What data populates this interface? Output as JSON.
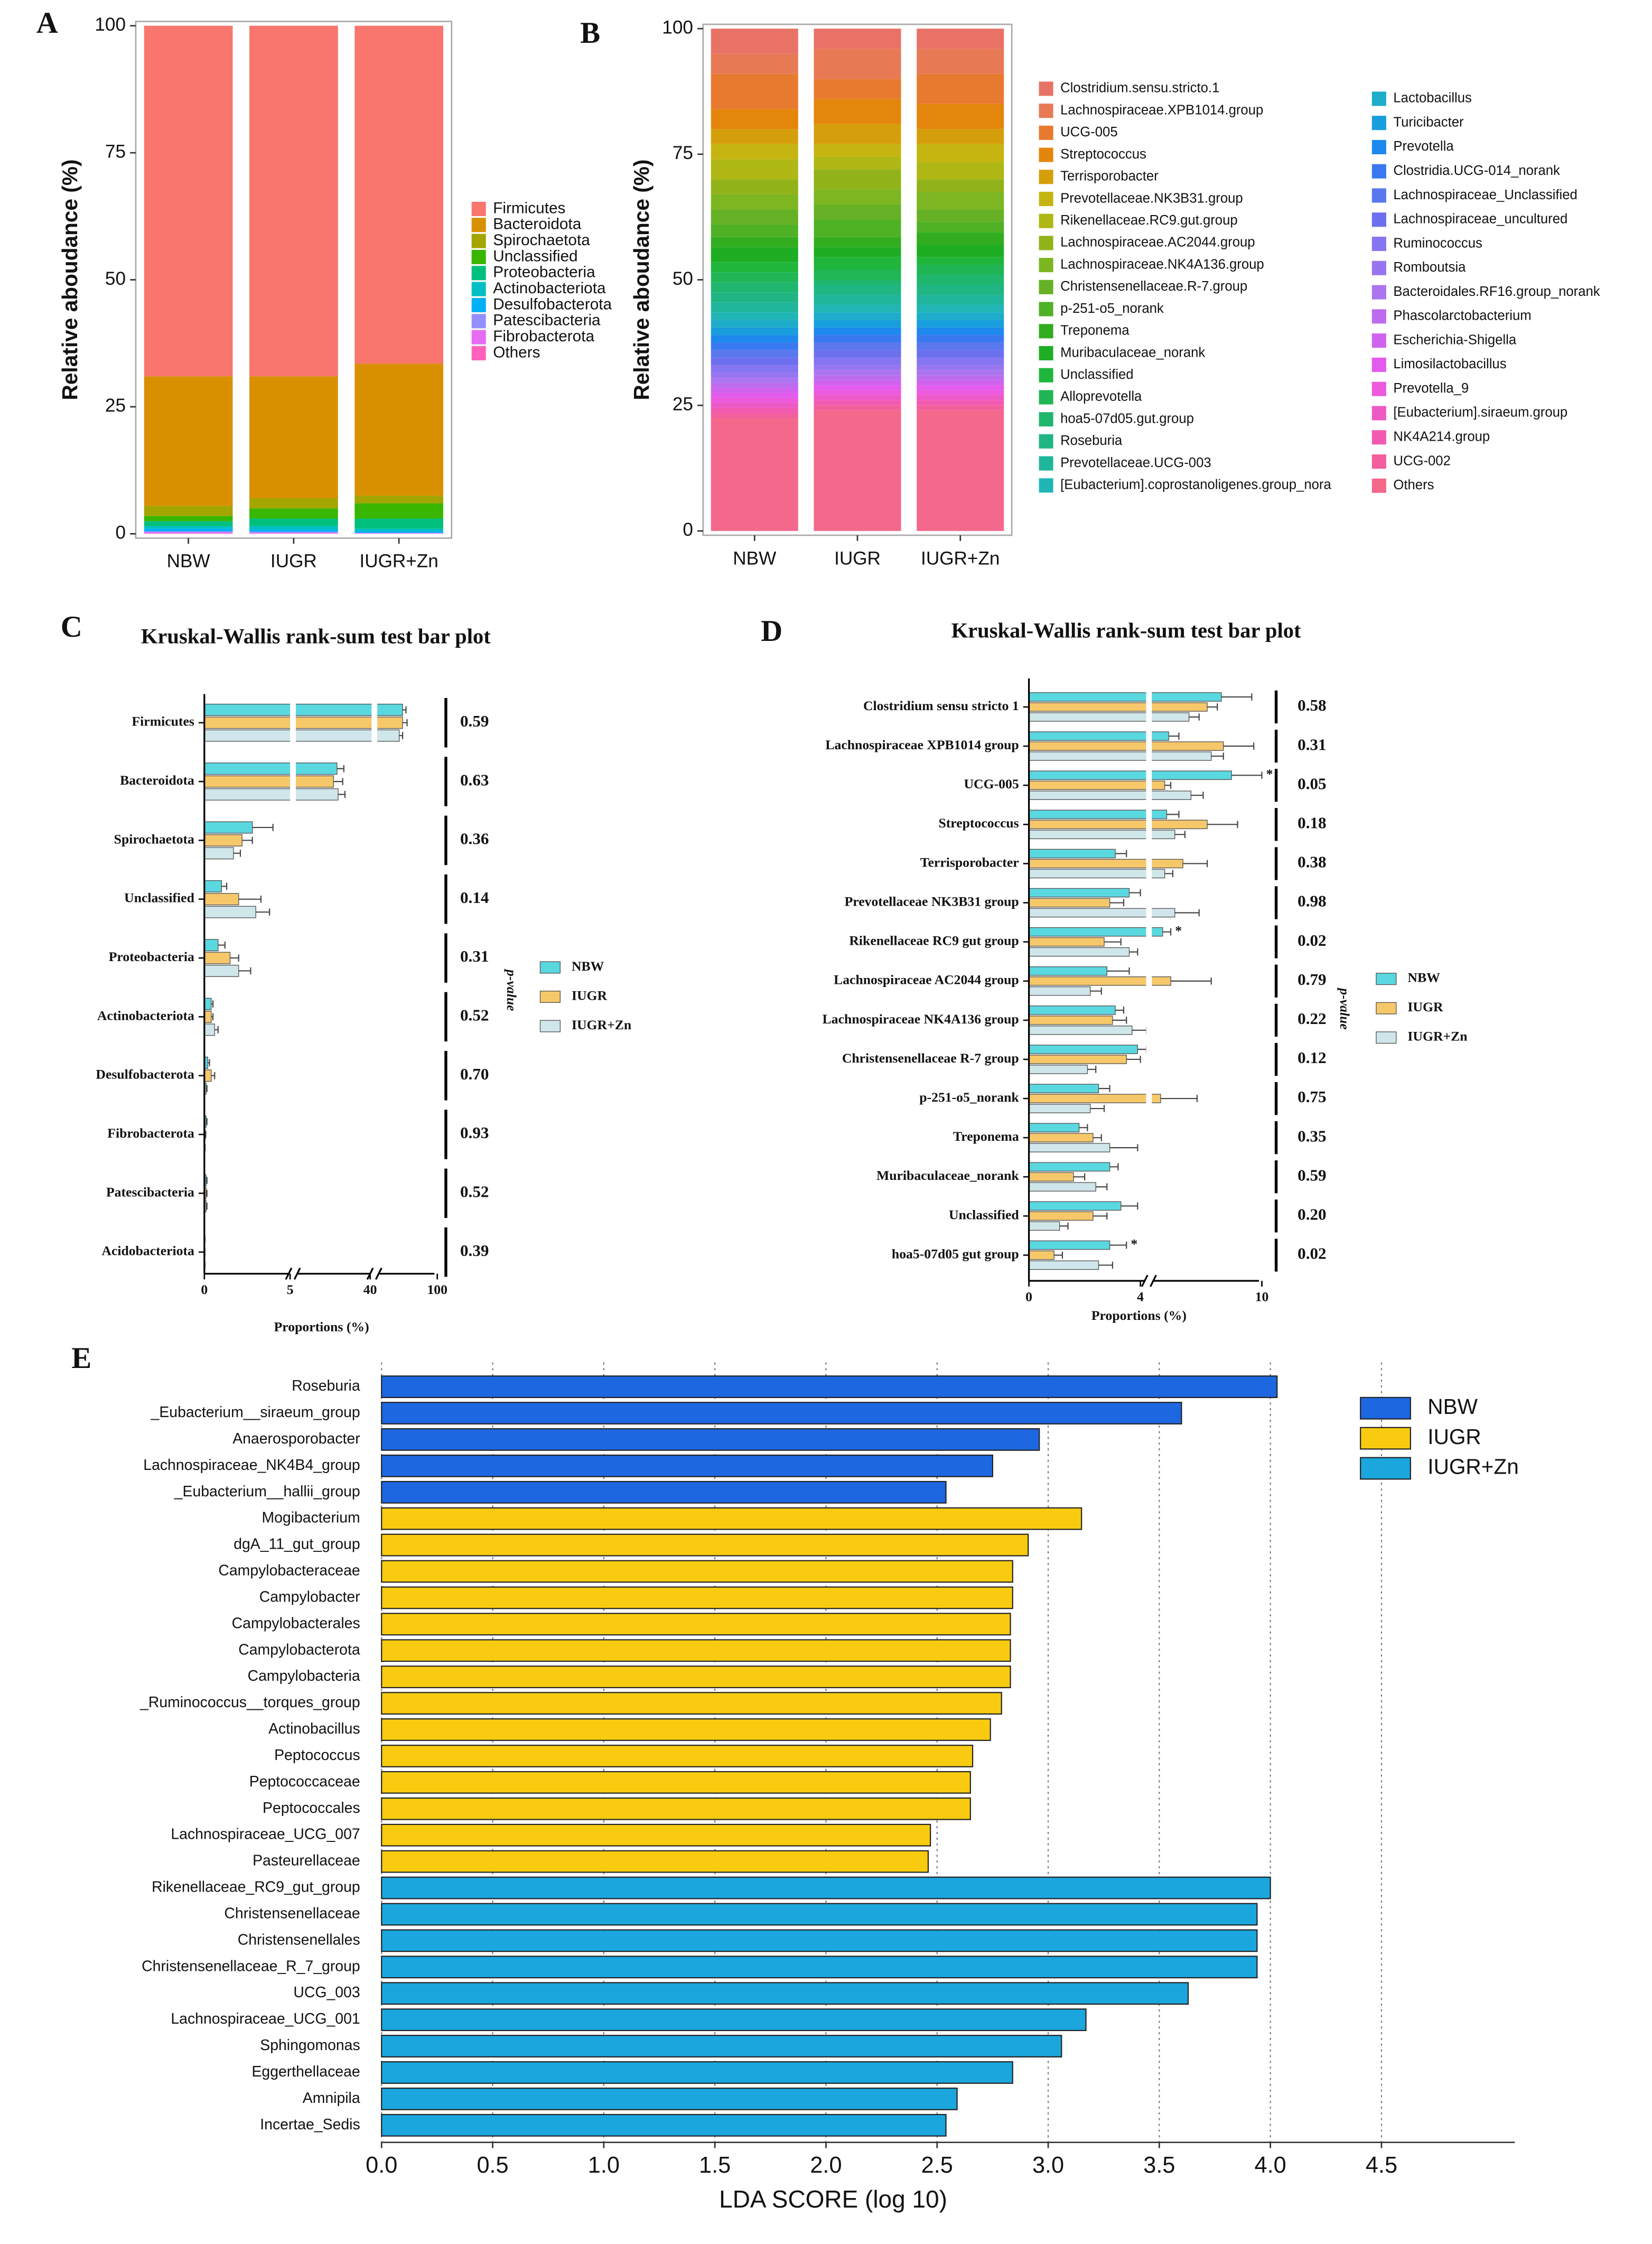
{
  "chart_data": [
    {
      "type": "stackedbar",
      "panel_label": "A",
      "ylabel": "Relative aboudance (%)",
      "categories": [
        "NBW",
        "IUGR",
        "IUGR+Zn"
      ],
      "ylim": [
        0,
        100
      ],
      "yticks": [
        0,
        25,
        50,
        75,
        100
      ],
      "series": [
        {
          "name": "Firmicutes",
          "color": "#f8766d",
          "values": [
            69,
            69,
            66.5
          ]
        },
        {
          "name": "Bacteroidota",
          "color": "#d89000",
          "values": [
            25.5,
            24,
            26
          ]
        },
        {
          "name": "Spirochaetota",
          "color": "#a3a500",
          "values": [
            2,
            2,
            1.5
          ]
        },
        {
          "name": "Unclassified",
          "color": "#39b600",
          "values": [
            1,
            2,
            3
          ]
        },
        {
          "name": "Proteobacteria",
          "color": "#00bf7d",
          "values": [
            1,
            1.5,
            2
          ]
        },
        {
          "name": "Actinobacteriota",
          "color": "#00bfc4",
          "values": [
            0.5,
            0.7,
            0.5
          ]
        },
        {
          "name": "Desulfobacterota",
          "color": "#00b0f6",
          "values": [
            0.5,
            0.4,
            0.3
          ]
        },
        {
          "name": "Patescibacteria",
          "color": "#9590ff",
          "values": [
            0.2,
            0.2,
            0.1
          ]
        },
        {
          "name": "Fibrobacterota",
          "color": "#e76bf3",
          "values": [
            0.2,
            0.1,
            0.05
          ]
        },
        {
          "name": "Others",
          "color": "#ff62bc",
          "values": [
            0.1,
            0.1,
            0.05
          ]
        }
      ]
    },
    {
      "type": "stackedbar",
      "panel_label": "B",
      "ylabel": "Relative aboudance (%)",
      "categories": [
        "NBW",
        "IUGR",
        "IUGR+Zn"
      ],
      "ylim": [
        0,
        100
      ],
      "yticks": [
        0,
        25,
        50,
        75,
        100
      ],
      "series": [
        {
          "name": "Clostridium.sensu.stricto.1",
          "color": "hsl(5,75%,66%)",
          "values": [
            5,
            4,
            4
          ]
        },
        {
          "name": "Lachnospiraceae.XPB1014.group",
          "color": "hsl(15,75%,62%)",
          "values": [
            4,
            6,
            5
          ]
        },
        {
          "name": "UCG-005",
          "color": "hsl(24,80%,55%)",
          "values": [
            7,
            4,
            6
          ]
        },
        {
          "name": "Streptococcus",
          "color": "hsl(34,90%,47%)",
          "values": [
            4,
            5,
            5
          ]
        },
        {
          "name": "Terrisporobacter",
          "color": "hsl(44,90%,44%)",
          "values": [
            3,
            4,
            3
          ]
        },
        {
          "name": "Prevotellaceae.NK3B31.group",
          "color": "hsl(54,85%,42%)",
          "values": [
            3,
            2.5,
            3.5
          ]
        },
        {
          "name": "Rikenellaceae.RC9.gut.group",
          "color": "hsl(63,80%,40%)",
          "values": [
            4,
            2.5,
            3.5
          ]
        },
        {
          "name": "Lachnospiraceae.AC2044.group",
          "color": "hsl(73,75%,40%)",
          "values": [
            3,
            4,
            2.5
          ]
        },
        {
          "name": "Lachnospiraceae.NK4A136.group",
          "color": "hsl(83,70%,42%)",
          "values": [
            3,
            3,
            3.5
          ]
        },
        {
          "name": "Christensenellaceae.R-7.group",
          "color": "hsl(92,65%,42%)",
          "values": [
            3,
            3,
            2.5
          ]
        },
        {
          "name": "p-251-o5_norank",
          "color": "hsl(102,65%,42%)",
          "values": [
            2.5,
            3.5,
            2
          ]
        },
        {
          "name": "Treponema",
          "color": "hsl(112,70%,40%)",
          "values": [
            2,
            2,
            2.5
          ]
        },
        {
          "name": "Muribaculaceae_norank",
          "color": "hsl(122,70%,40%)",
          "values": [
            3,
            2,
            2.5
          ]
        },
        {
          "name": "Unclassified",
          "color": "hsl(131,70%,42%)",
          "values": [
            2,
            2.5,
            1.5
          ]
        },
        {
          "name": "Alloprevotella",
          "color": "hsl(141,70%,42%)",
          "values": [
            2,
            2,
            2
          ]
        },
        {
          "name": "hoa5-07d05.gut.group",
          "color": "hsl(151,70%,42%)",
          "values": [
            2,
            1,
            2
          ]
        },
        {
          "name": "Roseburia",
          "color": "hsl(160,70%,42%)",
          "values": [
            2,
            2,
            2
          ]
        },
        {
          "name": "Prevotellaceae.UCG-003",
          "color": "hsl(170,70%,42%)",
          "values": [
            2,
            2,
            2
          ]
        },
        {
          "name": "[Eubacterium].coprostanoligenes.group_nora",
          "color": "hsl(180,70%,42%)",
          "values": [
            1.5,
            1.5,
            1.5
          ]
        },
        {
          "name": "Lactobacillus",
          "color": "hsl(190,75%,45%)",
          "values": [
            1.5,
            1.5,
            1.5
          ]
        },
        {
          "name": "Turicibacter",
          "color": "hsl(199,80%,48%)",
          "values": [
            1.5,
            1.5,
            1.5
          ]
        },
        {
          "name": "Prevotella",
          "color": "hsl(209,85%,52%)",
          "values": [
            1.5,
            1.5,
            1.5
          ]
        },
        {
          "name": "Clostridia.UCG-014_norank",
          "color": "hsl(219,85%,58%)",
          "values": [
            1.5,
            1.5,
            1.5
          ]
        },
        {
          "name": "Lachnospiraceae_Unclassified",
          "color": "hsl(228,80%,64%)",
          "values": [
            1.5,
            1.5,
            1.5
          ]
        },
        {
          "name": "Lachnospiraceae_uncultured",
          "color": "hsl(238,80%,68%)",
          "values": [
            1.5,
            1.5,
            1.5
          ]
        },
        {
          "name": "Ruminococcus",
          "color": "hsl(248,80%,70%)",
          "values": [
            1.5,
            1.5,
            1.5
          ]
        },
        {
          "name": "Romboutsia",
          "color": "hsl(257,80%,70%)",
          "values": [
            1,
            1,
            1
          ]
        },
        {
          "name": "Bacteroidales.RF16.group_norank",
          "color": "hsl(267,80%,70%)",
          "values": [
            1,
            1,
            1
          ]
        },
        {
          "name": "Phascolarctobacterium",
          "color": "hsl(277,80%,68%)",
          "values": [
            1,
            1,
            1
          ]
        },
        {
          "name": "Escherichia-Shigella",
          "color": "hsl(287,80%,66%)",
          "values": [
            1,
            1,
            1
          ]
        },
        {
          "name": "Limosilactobacillus",
          "color": "hsl(296,80%,64%)",
          "values": [
            1,
            1,
            1
          ]
        },
        {
          "name": "Prevotella_9",
          "color": "hsl(306,80%,64%)",
          "values": [
            1,
            1,
            1
          ]
        },
        {
          "name": "[Eubacterium].siraeum.group",
          "color": "hsl(316,80%,64%)",
          "values": [
            1,
            1,
            1
          ]
        },
        {
          "name": "NK4A214.group",
          "color": "hsl(325,85%,65%)",
          "values": [
            1,
            1,
            1
          ]
        },
        {
          "name": "UCG-002",
          "color": "hsl(335,85%,66%)",
          "values": [
            1,
            1,
            1
          ]
        },
        {
          "name": "Others",
          "color": "hsl(345,85%,68%)",
          "values": [
            22.5,
            24,
            24
          ]
        }
      ]
    },
    {
      "type": "groupedbar",
      "panel_label": "C",
      "title": "Kruskal-Wallis rank-sum test bar plot",
      "categories": [
        "Firmicutes",
        "Bacteroidota",
        "Spirochaetota",
        "Unclassified",
        "Proteobacteria",
        "Actinobacteriota",
        "Desulfobacterota",
        "Fibrobacterota",
        "Patescibacteria",
        "Acidobacteriota"
      ],
      "series": [
        {
          "name": "NBW",
          "color": "#5ad8e0",
          "values": [
            69,
            25.5,
            2.8,
            1.0,
            0.8,
            0.4,
            0.2,
            0.1,
            0.1,
            0.02
          ],
          "errors": [
            3,
            3,
            1.2,
            0.3,
            0.4,
            0.1,
            0.1,
            0.05,
            0.05,
            0.01
          ]
        },
        {
          "name": "IUGR",
          "color": "#f7c86a",
          "values": [
            69,
            24,
            2.2,
            2.0,
            1.5,
            0.4,
            0.4,
            0.05,
            0.1,
            0.02
          ],
          "errors": [
            4,
            4,
            0.6,
            1.3,
            0.5,
            0.1,
            0.2,
            0.03,
            0.05,
            0.01
          ]
        },
        {
          "name": "IUGR+Zn",
          "color": "#cfe6ea",
          "values": [
            66,
            26,
            1.7,
            3.0,
            2.0,
            0.6,
            0.1,
            0.02,
            0.1,
            0.02
          ],
          "errors": [
            3,
            3,
            0.4,
            0.8,
            0.7,
            0.2,
            0.05,
            0.02,
            0.05,
            0.01
          ]
        }
      ],
      "xlim": [
        0,
        100
      ],
      "xticks": [
        0,
        5,
        40,
        100
      ],
      "xlabel": "Proportions (%)",
      "p_label": "p-value",
      "p_values": [
        0.59,
        0.63,
        0.36,
        0.14,
        0.31,
        0.52,
        0.7,
        0.93,
        0.52,
        0.39
      ],
      "p_value_labels": [
        "0.59",
        "0.63",
        "0.36",
        "0.14",
        "0.31",
        "0.52",
        "0.70",
        "0.93",
        "0.52",
        "0.39"
      ]
    },
    {
      "type": "groupedbar",
      "panel_label": "D",
      "title": "Kruskal-Wallis rank-sum test bar plot",
      "categories": [
        "Clostridium sensu stricto 1",
        "Lachnospiraceae XPB1014 group",
        "UCG-005",
        "Streptococcus",
        "Terrisporobacter",
        "Prevotellaceae NK3B31 group",
        "Rikenellaceae RC9 gut group",
        "Lachnospiraceae AC2044 group",
        "Lachnospiraceae NK4A136 group",
        "Christensenellaceae R-7 group",
        "p-251-o5_norank",
        "Treponema",
        "Muribaculaceae_norank",
        "Unclassified",
        "hoa5-07d05 gut group"
      ],
      "series": [
        {
          "name": "NBW",
          "color": "#5ad8e0",
          "values": [
            8.0,
            5.4,
            8.5,
            5.3,
            3.1,
            3.6,
            5.1,
            2.8,
            3.1,
            3.9,
            2.5,
            1.8,
            2.9,
            3.3,
            2.9
          ],
          "errors": [
            1.5,
            0.5,
            1.5,
            0.6,
            0.4,
            0.4,
            0.4,
            0.8,
            0.3,
            0.4,
            0.4,
            0.3,
            0.3,
            0.6,
            0.6
          ]
        },
        {
          "name": "IUGR",
          "color": "#f7c86a",
          "values": [
            7.3,
            8.1,
            5.2,
            7.3,
            6.1,
            2.9,
            2.7,
            5.5,
            3.0,
            3.5,
            5.0,
            2.3,
            1.6,
            2.3,
            0.9
          ],
          "errors": [
            0.5,
            1.5,
            0.3,
            1.5,
            1.2,
            0.5,
            0.6,
            2.0,
            0.5,
            0.5,
            1.8,
            0.3,
            0.4,
            0.5,
            0.3
          ]
        },
        {
          "name": "IUGR+Zn",
          "color": "#cfe6ea",
          "values": [
            6.4,
            7.5,
            6.5,
            5.7,
            5.2,
            5.7,
            3.6,
            2.2,
            3.7,
            2.1,
            2.2,
            2.9,
            2.4,
            1.1,
            2.5
          ],
          "errors": [
            0.5,
            0.6,
            0.6,
            0.5,
            0.4,
            1.2,
            0.3,
            0.4,
            0.6,
            0.3,
            0.5,
            1.0,
            0.4,
            0.3,
            0.5
          ]
        }
      ],
      "xlim": [
        0,
        10
      ],
      "xticks": [
        0,
        4,
        10
      ],
      "xlabel": "Proportions (%)",
      "p_label": "p-value",
      "p_values": [
        0.58,
        0.31,
        0.05,
        0.18,
        0.38,
        0.98,
        0.02,
        0.79,
        0.22,
        0.12,
        0.75,
        0.35,
        0.59,
        0.2,
        0.02
      ],
      "p_value_labels": [
        "0.58",
        "0.31",
        "0.05",
        "0.18",
        "0.38",
        "0.98",
        "0.02",
        "0.79",
        "0.22",
        "0.12",
        "0.75",
        "0.35",
        "0.59",
        "0.20",
        "0.02"
      ],
      "significance_mark": "*",
      "significant_color": "#e8221c"
    },
    {
      "type": "hbar",
      "panel_label": "E",
      "xlabel": "LDA SCORE (log 10)",
      "grid": true,
      "xlim": [
        0,
        5.1
      ],
      "xticks": [
        {
          "value": 0,
          "label": "0.0"
        },
        0.5,
        {
          "value": 1,
          "label": "1.0"
        },
        1.5,
        {
          "value": 2,
          "label": "2.0"
        },
        2.5,
        {
          "value": 3,
          "label": "3.0"
        },
        3.5,
        {
          "value": 4,
          "label": "4.0"
        },
        4.5
      ],
      "series": [
        {
          "name": "NBW",
          "color": "#1d68e0",
          "categories": [
            "Roseburia",
            "_Eubacterium__siraeum_group",
            "Anaerosporobacter",
            "Lachnospiraceae_NK4B4_group",
            "_Eubacterium__hallii_group"
          ],
          "values": [
            4.03,
            3.6,
            2.96,
            2.75,
            2.54
          ]
        },
        {
          "name": "IUGR",
          "color": "#f8cb10",
          "categories": [
            "Mogibacterium",
            "dgA_11_gut_group",
            "Campylobacteraceae",
            "Campylobacter",
            "Campylobacterales",
            "Campylobacterota",
            "Campylobacteria",
            "_Ruminococcus__torques_group",
            "Actinobacillus",
            "Peptococcus",
            "Peptococcaceae",
            "Peptococcales",
            "Lachnospiraceae_UCG_007",
            "Pasteurellaceae"
          ],
          "values": [
            3.15,
            2.91,
            2.84,
            2.84,
            2.83,
            2.83,
            2.83,
            2.79,
            2.74,
            2.66,
            2.65,
            2.65,
            2.47,
            2.46
          ]
        },
        {
          "name": "IUGR+Zn",
          "color": "#1ba6dd",
          "categories": [
            "Rikenellaceae_RC9_gut_group",
            "Christensenellaceae",
            "Christensenellales",
            "Christensenellaceae_R_7_group",
            "UCG_003",
            "Lachnospiraceae_UCG_001",
            "Sphingomonas",
            "Eggerthellaceae",
            "Amnipila",
            "Incertae_Sedis"
          ],
          "values": [
            4.0,
            3.94,
            3.94,
            3.94,
            3.63,
            3.17,
            3.06,
            2.84,
            2.59,
            2.54
          ]
        }
      ]
    }
  ]
}
